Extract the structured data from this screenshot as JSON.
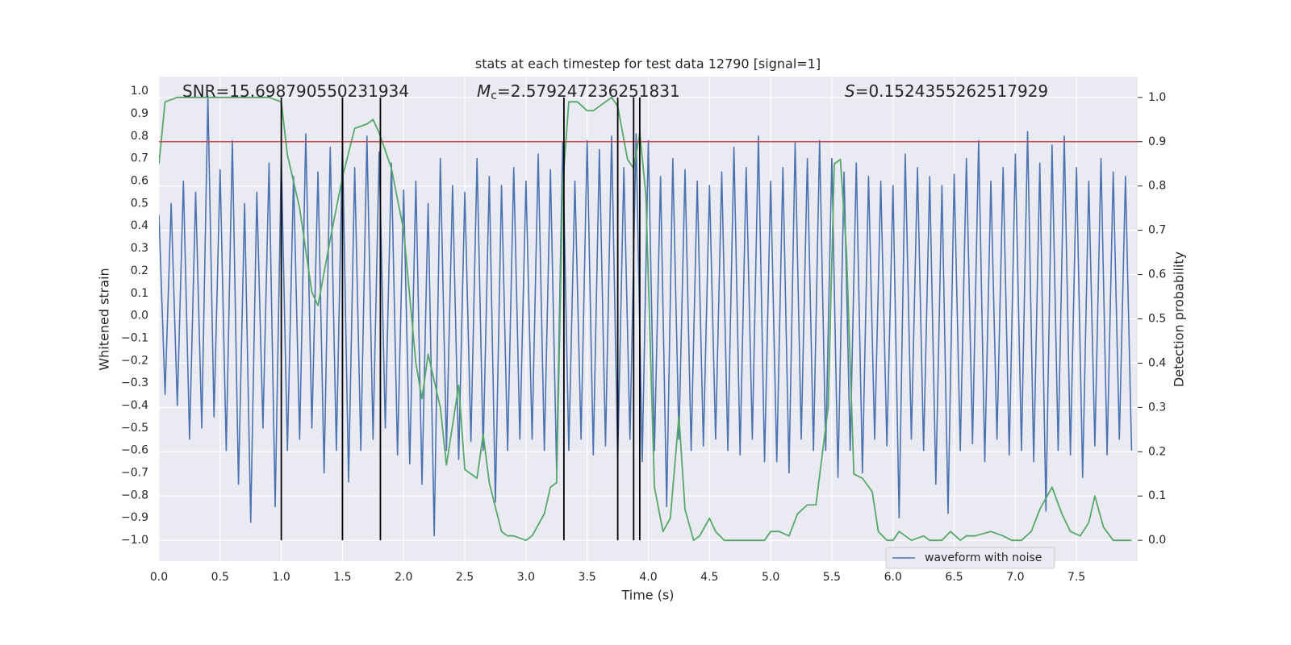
{
  "chart_data": {
    "type": "line",
    "title": "stats at each timestep for test data 12790 [signal=1]",
    "xlabel": "Time (s)",
    "ylabel": "Whitened strain",
    "y2label": "Detection probability",
    "annotations": [
      [
        {
          "t": "SNR=15.698790550231934"
        }
      ],
      [
        {
          "t": "M",
          "style": "italic"
        },
        {
          "t": "c",
          "style": "sub"
        },
        {
          "t": "=2.579247236251831"
        }
      ],
      [
        {
          "t": "S",
          "style": "italic"
        },
        {
          "t": "=0.1524355262517929"
        }
      ]
    ],
    "xlim": [
      0,
      8
    ],
    "ylim": [
      -1.093,
      1.065
    ],
    "y2lim": [
      -0.047,
      1.047
    ],
    "xticks": [
      {
        "value": 0,
        "label": "0.0"
      },
      {
        "value": 0.5,
        "label": "0.5"
      },
      {
        "value": 1,
        "label": "1.0"
      },
      {
        "value": 1.5,
        "label": "1.5"
      },
      {
        "value": 2,
        "label": "2.0"
      },
      {
        "value": 2.5,
        "label": "2.5"
      },
      {
        "value": 3,
        "label": "3.0"
      },
      {
        "value": 3.5,
        "label": "3.5"
      },
      {
        "value": 4,
        "label": "4.0"
      },
      {
        "value": 4.5,
        "label": "4.5"
      },
      {
        "value": 5,
        "label": "5.0"
      },
      {
        "value": 5.5,
        "label": "5.5"
      },
      {
        "value": 6,
        "label": "6.0"
      },
      {
        "value": 6.5,
        "label": "6.5"
      },
      {
        "value": 7,
        "label": "7.0"
      },
      {
        "value": 7.5,
        "label": "7.5"
      }
    ],
    "yticks": [
      {
        "value": -1,
        "label": "−1.0"
      },
      {
        "value": -0.9,
        "label": "−0.9"
      },
      {
        "value": -0.8,
        "label": "−0.8"
      },
      {
        "value": -0.7,
        "label": "−0.7"
      },
      {
        "value": -0.6,
        "label": "−0.6"
      },
      {
        "value": -0.5,
        "label": "−0.5"
      },
      {
        "value": -0.4,
        "label": "−0.4"
      },
      {
        "value": -0.3,
        "label": "−0.3"
      },
      {
        "value": -0.2,
        "label": "−0.2"
      },
      {
        "value": -0.1,
        "label": "−0.1"
      },
      {
        "value": 0,
        "label": "0.0"
      },
      {
        "value": 0.1,
        "label": "0.1"
      },
      {
        "value": 0.2,
        "label": "0.2"
      },
      {
        "value": 0.3,
        "label": "0.3"
      },
      {
        "value": 0.4,
        "label": "0.4"
      },
      {
        "value": 0.5,
        "label": "0.5"
      },
      {
        "value": 0.6,
        "label": "0.6"
      },
      {
        "value": 0.7,
        "label": "0.7"
      },
      {
        "value": 0.8,
        "label": "0.8"
      },
      {
        "value": 0.9,
        "label": "0.9"
      },
      {
        "value": 1,
        "label": "1.0"
      }
    ],
    "y2ticks": [
      {
        "value": 0,
        "label": "0.0"
      },
      {
        "value": 0.1,
        "label": "0.1"
      },
      {
        "value": 0.2,
        "label": "0.2"
      },
      {
        "value": 0.3,
        "label": "0.3"
      },
      {
        "value": 0.4,
        "label": "0.4"
      },
      {
        "value": 0.5,
        "label": "0.5"
      },
      {
        "value": 0.6,
        "label": "0.6"
      },
      {
        "value": 0.7,
        "label": "0.7"
      },
      {
        "value": 0.8,
        "label": "0.8"
      },
      {
        "value": 0.9,
        "label": "0.9"
      },
      {
        "value": 1,
        "label": "1.0"
      }
    ],
    "grid": true,
    "grid_axis": "y2",
    "legend": "lower right",
    "threshold": 0.9,
    "threshold_color": "#c44e52",
    "event_lines": [
      1.0,
      1.5,
      1.81,
      3.31,
      3.75,
      3.88,
      3.93
    ],
    "event_color": "#000000",
    "series": [
      {
        "name": "waveform with noise",
        "color": "#4c72b0",
        "axis": "y",
        "x": [
          0,
          0.05,
          0.1,
          0.15,
          0.2,
          0.25,
          0.3,
          0.35,
          0.4,
          0.45,
          0.5,
          0.55,
          0.6,
          0.65,
          0.7,
          0.75,
          0.8,
          0.85,
          0.9,
          0.95,
          1,
          1.05,
          1.1,
          1.15,
          1.2,
          1.25,
          1.3,
          1.35,
          1.4,
          1.45,
          1.5,
          1.55,
          1.6,
          1.65,
          1.7,
          1.75,
          1.8,
          1.85,
          1.9,
          1.95,
          2,
          2.05,
          2.1,
          2.15,
          2.2,
          2.25,
          2.3,
          2.35,
          2.4,
          2.45,
          2.5,
          2.55,
          2.6,
          2.65,
          2.7,
          2.75,
          2.8,
          2.85,
          2.9,
          2.95,
          3,
          3.05,
          3.1,
          3.15,
          3.2,
          3.25,
          3.3,
          3.35,
          3.4,
          3.45,
          3.5,
          3.55,
          3.6,
          3.65,
          3.7,
          3.75,
          3.8,
          3.85,
          3.9,
          3.95,
          4,
          4.05,
          4.1,
          4.15,
          4.2,
          4.25,
          4.3,
          4.35,
          4.4,
          4.45,
          4.5,
          4.55,
          4.6,
          4.65,
          4.7,
          4.75,
          4.8,
          4.85,
          4.9,
          4.95,
          5,
          5.05,
          5.1,
          5.15,
          5.2,
          5.25,
          5.3,
          5.35,
          5.4,
          5.45,
          5.5,
          5.55,
          5.6,
          5.65,
          5.7,
          5.75,
          5.8,
          5.85,
          5.9,
          5.95,
          6,
          6.05,
          6.1,
          6.15,
          6.2,
          6.25,
          6.3,
          6.35,
          6.4,
          6.45,
          6.5,
          6.55,
          6.6,
          6.65,
          6.7,
          6.75,
          6.8,
          6.85,
          6.9,
          6.95,
          7,
          7.05,
          7.1,
          7.15,
          7.2,
          7.25,
          7.3,
          7.35,
          7.4,
          7.45,
          7.5,
          7.55,
          7.6,
          7.65,
          7.7,
          7.75,
          7.8,
          7.85,
          7.9,
          7.95
        ],
        "values": [
          0.45,
          -0.35,
          0.5,
          -0.4,
          0.6,
          -0.55,
          0.55,
          -0.5,
          0.98,
          -0.45,
          0.65,
          -0.6,
          0.78,
          -0.75,
          0.5,
          -0.92,
          0.55,
          -0.5,
          0.68,
          -0.85,
          0.7,
          -0.6,
          0.62,
          -0.55,
          0.81,
          -0.5,
          0.64,
          -0.7,
          0.75,
          -0.6,
          0.77,
          -0.74,
          0.66,
          -0.6,
          0.8,
          -0.55,
          0.73,
          -0.5,
          0.68,
          -0.62,
          0.56,
          -0.66,
          0.6,
          -0.75,
          0.5,
          -0.98,
          0.7,
          -0.6,
          0.58,
          -0.64,
          0.55,
          -0.56,
          0.7,
          -0.6,
          0.62,
          -0.83,
          0.58,
          -0.6,
          0.66,
          -0.55,
          0.6,
          -0.55,
          0.72,
          -0.6,
          0.65,
          -0.68,
          0.77,
          -0.6,
          0.6,
          -0.55,
          0.78,
          -0.62,
          0.74,
          -0.58,
          0.8,
          -0.64,
          0.66,
          -0.55,
          0.81,
          -0.65,
          0.78,
          -0.6,
          0.62,
          -0.85,
          0.7,
          -0.55,
          0.65,
          -0.6,
          0.6,
          -0.58,
          0.58,
          -0.55,
          0.64,
          -0.6,
          0.75,
          -0.62,
          0.66,
          -0.55,
          0.8,
          -0.65,
          0.6,
          -0.65,
          0.66,
          -0.7,
          0.77,
          -0.55,
          0.7,
          -0.6,
          0.78,
          -0.6,
          0.7,
          -0.72,
          0.64,
          -0.6,
          0.68,
          -0.7,
          0.62,
          -0.55,
          0.6,
          -0.58,
          0.58,
          -0.9,
          0.72,
          -0.55,
          0.66,
          -0.6,
          0.62,
          -0.75,
          0.58,
          -0.88,
          0.63,
          -0.6,
          0.7,
          -0.57,
          0.78,
          -0.65,
          0.6,
          -0.55,
          0.66,
          -0.62,
          0.72,
          -0.6,
          0.82,
          -0.65,
          0.68,
          -0.87,
          0.76,
          -0.6,
          0.8,
          -0.62,
          0.66,
          -0.72,
          0.6,
          -0.58,
          0.7,
          -0.62,
          0.64,
          -0.55,
          0.62,
          -0.6
        ]
      },
      {
        "color": "#55a868",
        "axis": "y2",
        "x": [
          0,
          0.05,
          0.15,
          0.9,
          1,
          1.05,
          1.15,
          1.25,
          1.3,
          1.4,
          1.5,
          1.6,
          1.7,
          1.75,
          1.8,
          1.9,
          2,
          2.1,
          2.15,
          2.2,
          2.3,
          2.35,
          2.45,
          2.5,
          2.6,
          2.65,
          2.7,
          2.8,
          2.85,
          2.9,
          3,
          3.05,
          3.15,
          3.2,
          3.25,
          3.3,
          3.35,
          3.42,
          3.5,
          3.55,
          3.6,
          3.7,
          3.75,
          3.83,
          3.88,
          3.93,
          3.98,
          4.05,
          4.12,
          4.18,
          4.25,
          4.3,
          4.37,
          4.42,
          4.5,
          4.55,
          4.62,
          4.8,
          4.95,
          5,
          5.07,
          5.15,
          5.22,
          5.3,
          5.37,
          5.47,
          5.52,
          5.57,
          5.62,
          5.68,
          5.75,
          5.83,
          5.88,
          5.95,
          6,
          6.05,
          6.15,
          6.25,
          6.3,
          6.4,
          6.47,
          6.55,
          6.6,
          6.67,
          6.8,
          6.9,
          6.97,
          7.05,
          7.13,
          7.2,
          7.3,
          7.38,
          7.45,
          7.53,
          7.6,
          7.65,
          7.72,
          7.8,
          7.95
        ],
        "values": [
          0.85,
          0.99,
          1,
          1,
          0.99,
          0.87,
          0.75,
          0.56,
          0.53,
          0.68,
          0.82,
          0.93,
          0.94,
          0.95,
          0.92,
          0.84,
          0.7,
          0.4,
          0.32,
          0.42,
          0.3,
          0.17,
          0.35,
          0.16,
          0.14,
          0.24,
          0.13,
          0.02,
          0.01,
          0.01,
          0,
          0.01,
          0.06,
          0.12,
          0.13,
          0.8,
          0.99,
          0.99,
          0.97,
          0.97,
          0.98,
          1,
          0.98,
          0.86,
          0.84,
          0.92,
          0.78,
          0.12,
          0.02,
          0.05,
          0.28,
          0.07,
          0,
          0.01,
          0.05,
          0.02,
          0,
          0,
          0,
          0.02,
          0.02,
          0.01,
          0.06,
          0.08,
          0.08,
          0.3,
          0.85,
          0.86,
          0.65,
          0.15,
          0.14,
          0.11,
          0.02,
          0,
          0,
          0.02,
          0,
          0.01,
          0,
          0,
          0.02,
          0,
          0.01,
          0.01,
          0.02,
          0.01,
          0,
          0,
          0.02,
          0.07,
          0.12,
          0.06,
          0.02,
          0.01,
          0.04,
          0.1,
          0.03,
          0,
          0
        ]
      }
    ]
  }
}
